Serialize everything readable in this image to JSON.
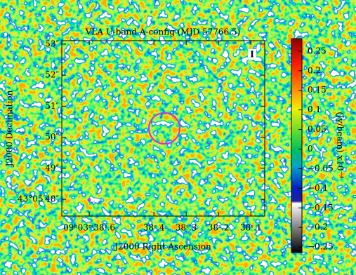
{
  "chart_data": {
    "type": "image",
    "title": "VLA U-band A-config (MJD 57766.5)",
    "xlabel": "J2000 Right Ascension",
    "ylabel": "J2000 Declination",
    "stokes": "I",
    "xlim": [
      38.685,
      38.057
    ],
    "xticks": [
      {
        "value": 38.6,
        "label": "09ʰ03ᵐ38ˢ.6"
      },
      {
        "value": 38.4,
        "label": "38ˢ.4"
      },
      {
        "value": 38.3,
        "label": "38ˢ.3"
      },
      {
        "value": 38.2,
        "label": "38ˢ.2"
      },
      {
        "value": 38.1,
        "label": "38ˢ.1"
      }
    ],
    "ylim": [
      47.46,
      53.11
    ],
    "yticks": [
      {
        "value": 48,
        "label": "43°05′48″"
      },
      {
        "value": 49,
        "label": "49″"
      },
      {
        "value": 50,
        "label": "50″"
      },
      {
        "value": 51,
        "label": "51″"
      },
      {
        "value": 52,
        "label": "52″"
      },
      {
        "value": 53,
        "label": "53″"
      }
    ],
    "colorbar": {
      "label": "(Jy/beam) x10⁻⁴",
      "lim": [
        -0.264,
        0.282
      ],
      "ticks": [
        {
          "value": -0.25,
          "label": "−0.25"
        },
        {
          "value": -0.2,
          "label": "−0.2"
        },
        {
          "value": -0.15,
          "label": "−0.15"
        },
        {
          "value": -0.1,
          "label": "−0.1"
        },
        {
          "value": -0.05,
          "label": "−0.05"
        },
        0,
        0.05,
        0.1,
        0.15,
        0.2,
        0.25
      ]
    }
  }
}
